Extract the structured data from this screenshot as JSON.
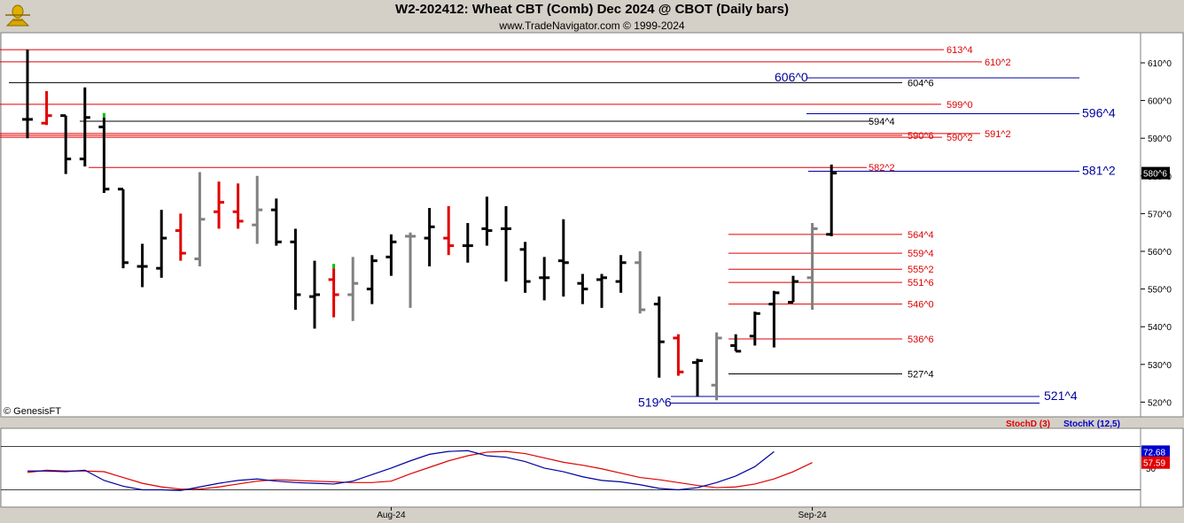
{
  "title": "W2-202412:  Wheat CBT (Comb) Dec 2024 @ CBOT  (Daily bars)",
  "subtitle": "www.TradeNavigator.com © 1999-2024",
  "copyright": "© GenesisFT",
  "logo_icon": "gold-trophy-icon",
  "colors": {
    "background": "#ffffff",
    "frame": "#d4d0c8",
    "up_bar": "#000000",
    "down_bar": "#e00000",
    "neutral_bar": "#808080",
    "resistance": "#e00000",
    "support": "#0000a0",
    "stochD": "#e00000",
    "stochK": "#0000cc"
  },
  "chart_data": [
    {
      "type": "ohlc",
      "title": "W2-202412:  Wheat CBT (Comb) Dec 2024 @ CBOT  (Daily bars)",
      "ylim": [
        515,
        619
      ],
      "y_ticks": [
        520,
        530,
        540,
        550,
        560,
        570,
        580,
        590,
        600,
        610
      ],
      "y_tick_labels": [
        "520^0",
        "530^0",
        "540^0",
        "550^0",
        "560^0",
        "570^0",
        "580^0",
        "590^0",
        "600^0",
        "610^0"
      ],
      "x_labels": [
        {
          "index": 19,
          "label": "Aug-24"
        },
        {
          "index": 41,
          "label": "Sep-24"
        }
      ],
      "last_price_label": "580^6",
      "last_price": 580.75,
      "bars": [
        {
          "o": 595,
          "h": 613.5,
          "l": 590,
          "c": 595,
          "color": "up"
        },
        {
          "o": 594,
          "h": 602.5,
          "l": 593.5,
          "c": 596,
          "color": "down"
        },
        {
          "o": 596,
          "h": 596,
          "l": 580.5,
          "c": 584.5,
          "color": "up"
        },
        {
          "o": 584.5,
          "h": 603.5,
          "l": 582.5,
          "c": 595.5,
          "color": "up"
        },
        {
          "o": 593,
          "h": 595.5,
          "l": 575.5,
          "c": 576.5,
          "color": "up",
          "high_marker": "green"
        },
        {
          "o": 576.5,
          "h": 576.5,
          "l": 555.5,
          "c": 557,
          "color": "up"
        },
        {
          "o": 556,
          "h": 562,
          "l": 550.5,
          "c": 556,
          "color": "up"
        },
        {
          "o": 555.5,
          "h": 571,
          "l": 553,
          "c": 563.5,
          "color": "up"
        },
        {
          "o": 565.5,
          "h": 570,
          "l": 557.5,
          "c": 559.5,
          "color": "down"
        },
        {
          "o": 558,
          "h": 581,
          "l": 556,
          "c": 568.5,
          "color": "neutral"
        },
        {
          "o": 570.5,
          "h": 578.5,
          "l": 566,
          "c": 573,
          "color": "down"
        },
        {
          "o": 570.5,
          "h": 578,
          "l": 566,
          "c": 568,
          "color": "down"
        },
        {
          "o": 567,
          "h": 580,
          "l": 562,
          "c": 571,
          "color": "neutral"
        },
        {
          "o": 571,
          "h": 574,
          "l": 561.5,
          "c": 562.5,
          "color": "up"
        },
        {
          "o": 562.5,
          "h": 566,
          "l": 544.5,
          "c": 548.5,
          "color": "up"
        },
        {
          "o": 548,
          "h": 557.5,
          "l": 539.5,
          "c": 548.5,
          "color": "up"
        },
        {
          "o": 552.5,
          "h": 555.5,
          "l": 542.5,
          "c": 548.5,
          "color": "down",
          "high_marker": "green"
        },
        {
          "o": 548.5,
          "h": 558.5,
          "l": 541.5,
          "c": 551.5,
          "color": "neutral"
        },
        {
          "o": 550,
          "h": 559,
          "l": 546,
          "c": 557.5,
          "color": "up"
        },
        {
          "o": 558.5,
          "h": 564.5,
          "l": 553.5,
          "c": 562.5,
          "color": "up"
        },
        {
          "o": 564,
          "h": 565,
          "l": 545,
          "c": 564,
          "color": "neutral"
        },
        {
          "o": 563.5,
          "h": 571.5,
          "l": 556,
          "c": 566.5,
          "color": "up"
        },
        {
          "o": 563.5,
          "h": 572,
          "l": 559,
          "c": 561.5,
          "color": "down"
        },
        {
          "o": 561.5,
          "h": 567.5,
          "l": 557,
          "c": 561.5,
          "color": "up"
        },
        {
          "o": 566,
          "h": 574.5,
          "l": 561.5,
          "c": 565.5,
          "color": "up"
        },
        {
          "o": 566,
          "h": 572,
          "l": 552,
          "c": 566,
          "color": "up"
        },
        {
          "o": 560.5,
          "h": 562.5,
          "l": 549,
          "c": 552,
          "color": "up"
        },
        {
          "o": 553,
          "h": 558.5,
          "l": 547,
          "c": 553,
          "color": "up"
        },
        {
          "o": 557.5,
          "h": 568.5,
          "l": 548,
          "c": 557,
          "color": "up"
        },
        {
          "o": 551.5,
          "h": 554,
          "l": 546,
          "c": 550,
          "color": "up"
        },
        {
          "o": 552.5,
          "h": 554,
          "l": 545,
          "c": 553,
          "color": "up"
        },
        {
          "o": 552,
          "h": 559,
          "l": 549,
          "c": 557,
          "color": "up"
        },
        {
          "o": 557,
          "h": 560,
          "l": 543.5,
          "c": 544.5,
          "color": "neutral"
        },
        {
          "o": 546,
          "h": 548,
          "l": 526.5,
          "c": 536,
          "color": "up"
        },
        {
          "o": 537,
          "h": 538,
          "l": 527,
          "c": 528,
          "color": "down"
        },
        {
          "o": 530.5,
          "h": 531.5,
          "l": 521.5,
          "c": 531,
          "color": "up"
        },
        {
          "o": 524.5,
          "h": 538.5,
          "l": 520.5,
          "c": 537,
          "color": "neutral"
        },
        {
          "o": 535,
          "h": 538,
          "l": 533.5,
          "c": 533.5,
          "color": "up"
        },
        {
          "o": 537.5,
          "h": 544,
          "l": 535,
          "c": 543.5,
          "color": "up"
        },
        {
          "o": 546,
          "h": 549.5,
          "l": 534.5,
          "c": 549,
          "color": "up"
        },
        {
          "o": 546.5,
          "h": 553.5,
          "l": 546.5,
          "c": 552,
          "color": "up"
        },
        {
          "o": 553,
          "h": 567.5,
          "l": 544.5,
          "c": 566,
          "color": "neutral"
        },
        {
          "o": 564.5,
          "h": 583,
          "l": 564,
          "c": 580.75,
          "color": "up"
        }
      ],
      "levels": [
        {
          "label": "613^4",
          "value": 613.5,
          "color": "red"
        },
        {
          "label": "610^2",
          "value": 610.25,
          "color": "red"
        },
        {
          "label": "606^0",
          "value": 606.0,
          "color": "blue",
          "big": true
        },
        {
          "label": "604^6",
          "value": 604.75,
          "color": "black"
        },
        {
          "label": "599^0",
          "value": 599.0,
          "color": "red"
        },
        {
          "label": "596^4",
          "value": 596.5,
          "color": "blue",
          "big": true
        },
        {
          "label": "594^4",
          "value": 594.5,
          "color": "black"
        },
        {
          "label": "591^2",
          "value": 591.25,
          "color": "red"
        },
        {
          "label": "590^6",
          "value": 590.75,
          "color": "red"
        },
        {
          "label": "590^2",
          "value": 590.25,
          "color": "red"
        },
        {
          "label": "582^2",
          "value": 582.25,
          "color": "red"
        },
        {
          "label": "581^2",
          "value": 581.25,
          "color": "blue",
          "big": true
        },
        {
          "label": "564^4",
          "value": 564.5,
          "color": "red"
        },
        {
          "label": "559^4",
          "value": 559.5,
          "color": "red"
        },
        {
          "label": "555^2",
          "value": 555.25,
          "color": "red"
        },
        {
          "label": "551^6",
          "value": 551.75,
          "color": "red"
        },
        {
          "label": "546^0",
          "value": 546.0,
          "color": "red"
        },
        {
          "label": "536^6",
          "value": 536.75,
          "color": "red"
        },
        {
          "label": "527^4",
          "value": 527.5,
          "color": "black"
        },
        {
          "label": "521^4",
          "value": 521.5,
          "color": "blue",
          "big": true
        },
        {
          "label": "519^6",
          "value": 519.75,
          "color": "blue",
          "big": true
        }
      ]
    },
    {
      "type": "line",
      "ylim": [
        0,
        100
      ],
      "y_ticks": [
        50
      ],
      "y_tick_labels": [
        "50"
      ],
      "legend": [
        "StochD (3)",
        "StochK (12,5)"
      ],
      "last_values": {
        "StochD": "57.59",
        "StochK": "72.68"
      },
      "series": [
        {
          "name": "StochD (3)",
          "color": "red",
          "values": [
            44,
            47,
            46,
            46,
            45,
            37,
            29,
            24,
            21,
            21,
            24,
            28,
            32,
            34,
            33,
            32,
            31,
            30,
            30,
            32,
            42,
            51,
            60,
            67,
            72,
            73,
            70,
            64,
            58,
            54,
            49,
            43,
            37,
            34,
            30,
            26,
            23,
            24,
            28,
            35,
            45,
            57.59
          ]
        },
        {
          "name": "StochK (12,5)",
          "color": "blue",
          "values": [
            46,
            46,
            45,
            47,
            33,
            25,
            20,
            20,
            19,
            24,
            29,
            33,
            35,
            32,
            30,
            29,
            28,
            32,
            41,
            50,
            60,
            69,
            73,
            74,
            67,
            65,
            59,
            50,
            45,
            38,
            33,
            31,
            27,
            22,
            20,
            23,
            30,
            39,
            52,
            72.68
          ]
        }
      ]
    }
  ]
}
